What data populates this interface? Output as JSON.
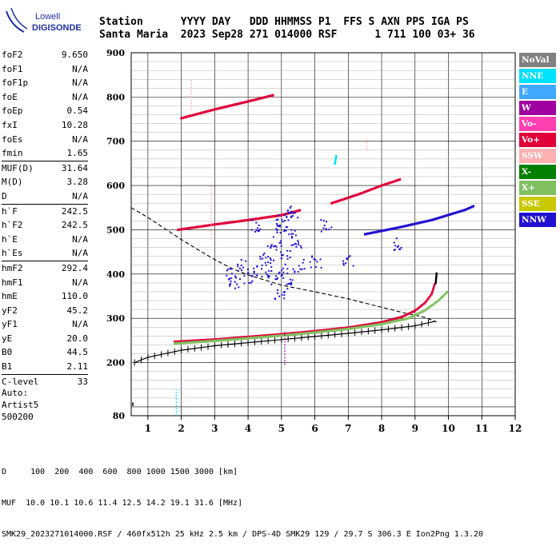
{
  "logo": {
    "line1": "Lowell",
    "line2": "DIGISONDE"
  },
  "header": {
    "line1": "Station      YYYY DAY   DDD HHMMSS P1  FFS S AXN PPS IGA PS",
    "line2": "Santa Maria  2023 Sep28 271 014000 RSF      1 711 100 03+ 36"
  },
  "params": {
    "groups": [
      [
        {
          "label": "foF2",
          "value": "9.650"
        },
        {
          "label": "foF1",
          "value": "N/A"
        },
        {
          "label": "foF1p",
          "value": "N/A"
        },
        {
          "label": "foE",
          "value": "N/A"
        },
        {
          "label": "foEp",
          "value": "0.54"
        },
        {
          "label": "fxI",
          "value": "10.28"
        },
        {
          "label": "foEs",
          "value": "N/A"
        },
        {
          "label": "fmin",
          "value": "1.65"
        }
      ],
      [
        {
          "label": "MUF(D)",
          "value": "31.64"
        },
        {
          "label": "M(D)",
          "value": "3.28"
        },
        {
          "label": "D",
          "value": "N/A"
        }
      ],
      [
        {
          "label": "h`F",
          "value": "242.5"
        },
        {
          "label": "h`F2",
          "value": "242.5"
        },
        {
          "label": "h`E",
          "value": "N/A"
        },
        {
          "label": "h`Es",
          "value": "N/A"
        }
      ],
      [
        {
          "label": "hmF2",
          "value": "292.4"
        },
        {
          "label": "hmF1",
          "value": "N/A"
        },
        {
          "label": "hmE",
          "value": "110.0"
        },
        {
          "label": "yF2",
          "value": "45.2"
        },
        {
          "label": "yF1",
          "value": "N/A"
        },
        {
          "label": "yE",
          "value": "20.0"
        },
        {
          "label": "B0",
          "value": "44.5"
        },
        {
          "label": "B1",
          "value": "2.11"
        }
      ],
      [
        {
          "label": "C-level",
          "value": "33"
        }
      ]
    ]
  },
  "auto": {
    "line1": "Auto:",
    "line2": "Artist5",
    "line3": "500200"
  },
  "legend": [
    {
      "label": "NoVal",
      "color": "#808080"
    },
    {
      "label": "NNE",
      "color": "#00e0ff"
    },
    {
      "label": "E",
      "color": "#40a8ff"
    },
    {
      "label": "W",
      "color": "#a000a0"
    },
    {
      "label": "Vo-",
      "color": "#ff40b0"
    },
    {
      "label": "Vo+",
      "color": "#e0003a"
    },
    {
      "label": "SSW",
      "color": "#ffb0b0"
    },
    {
      "label": "X-",
      "color": "#008000"
    },
    {
      "label": "X+",
      "color": "#80c060"
    },
    {
      "label": "SSE",
      "color": "#c8c800"
    },
    {
      "label": "NNW",
      "color": "#2010d0"
    }
  ],
  "footer": {
    "line1": "D     100  200  400  600  800 1000 1500 3000 [km]",
    "line2": "MUF  10.0 10.1 10.6 11.4 12.5 14.2 19.1 31.6 [MHz]",
    "line3": "SMK29_2023271014000.RSF / 460fx512h 25 kHz 2.5 km / DPS-4D SMK29 129 / 29.7 S 306.3 E Ion2Png 1.3.20"
  },
  "chart_data": {
    "type": "scatter",
    "x_range": [
      0.5,
      12
    ],
    "y_range": [
      80,
      900
    ],
    "x_ticks": [
      1,
      2,
      3,
      4,
      5,
      6,
      7,
      8,
      9,
      10,
      11,
      12
    ],
    "y_ticks": [
      200,
      300,
      400,
      500,
      600,
      700,
      800,
      900
    ],
    "y_extra_tick": 80,
    "grid": true,
    "legend_position": "right",
    "series": [
      {
        "color": "#e0003a",
        "mode": "trace",
        "points": [
          [
            1.8,
            247
          ],
          [
            3,
            252
          ],
          [
            4,
            258
          ],
          [
            5,
            264
          ],
          [
            6,
            271
          ],
          [
            7,
            279
          ],
          [
            8,
            291
          ],
          [
            8.6,
            303
          ],
          [
            9,
            317
          ],
          [
            9.3,
            335
          ],
          [
            9.5,
            355
          ],
          [
            9.6,
            380
          ]
        ]
      },
      {
        "color": "#80c060",
        "mode": "trace",
        "points": [
          [
            1.8,
            243
          ],
          [
            3,
            249
          ],
          [
            4,
            255
          ],
          [
            5,
            261
          ],
          [
            6,
            268
          ],
          [
            7,
            276
          ],
          [
            8,
            287
          ],
          [
            8.8,
            300
          ],
          [
            9.3,
            318
          ],
          [
            9.7,
            340
          ],
          [
            10,
            362
          ]
        ]
      },
      {
        "color": "#000000",
        "mode": "trace",
        "points": [
          [
            9.62,
            380
          ],
          [
            9.65,
            405
          ]
        ]
      },
      {
        "color": "#e0003a",
        "mode": "trace",
        "points": [
          [
            1.9,
            500
          ],
          [
            3,
            512
          ],
          [
            4,
            522
          ],
          [
            5,
            533
          ],
          [
            5.6,
            545
          ]
        ]
      },
      {
        "color": "#e0003a",
        "mode": "trace",
        "points": [
          [
            2,
            752
          ],
          [
            3,
            772
          ],
          [
            4,
            790
          ],
          [
            4.8,
            805
          ]
        ]
      },
      {
        "color": "#e0003a",
        "mode": "trace",
        "points": [
          [
            6.5,
            560
          ],
          [
            7.3,
            580
          ],
          [
            8,
            600
          ],
          [
            8.6,
            615
          ]
        ]
      },
      {
        "color": "#2010d0",
        "mode": "trace",
        "points": [
          [
            7.5,
            490
          ],
          [
            8.5,
            505
          ],
          [
            9.5,
            522
          ],
          [
            10.5,
            545
          ],
          [
            10.8,
            555
          ]
        ]
      },
      {
        "color": "#2010d0",
        "mode": "scatter",
        "points": [
          [
            4,
            395
          ],
          [
            4.3,
            410
          ],
          [
            4.6,
            420
          ],
          [
            4.8,
            470
          ],
          [
            4.9,
            500
          ],
          [
            5,
            520
          ],
          [
            5.1,
            450
          ],
          [
            5.2,
            380
          ],
          [
            5.3,
            530
          ],
          [
            4.5,
            450
          ],
          [
            3.8,
            420
          ],
          [
            3.6,
            380
          ],
          [
            5.4,
            470
          ],
          [
            5.5,
            420
          ],
          [
            6,
            430
          ],
          [
            4.7,
            390
          ],
          [
            5.05,
            410
          ],
          [
            5.25,
            490
          ],
          [
            4.95,
            360
          ],
          [
            5.15,
            540
          ],
          [
            3.5,
            400
          ],
          [
            4.2,
            510
          ],
          [
            6.3,
            510
          ],
          [
            7,
            430
          ],
          [
            8.5,
            470
          ]
        ]
      },
      {
        "color": "#00e0ff",
        "mode": "trace",
        "points": [
          [
            6.6,
            650
          ],
          [
            6.65,
            670
          ]
        ]
      }
    ],
    "profile": {
      "true_height": [
        [
          0.6,
          200
        ],
        [
          1,
          212
        ],
        [
          2,
          228
        ],
        [
          3,
          238
        ],
        [
          4,
          245
        ],
        [
          5,
          252
        ],
        [
          6,
          259
        ],
        [
          7,
          266
        ],
        [
          8,
          274
        ],
        [
          9,
          283
        ],
        [
          9.4,
          290
        ],
        [
          9.6,
          293
        ]
      ],
      "dashed": [
        [
          0.5,
          550
        ],
        [
          1,
          528
        ],
        [
          1.5,
          503
        ],
        [
          2,
          478
        ],
        [
          2.5,
          455
        ],
        [
          3,
          433
        ],
        [
          3.5,
          413
        ],
        [
          4,
          398
        ],
        [
          5,
          375
        ],
        [
          6,
          360
        ],
        [
          7,
          344
        ],
        [
          8,
          325
        ],
        [
          8.7,
          312
        ],
        [
          9.3,
          302
        ],
        [
          9.65,
          292
        ]
      ]
    },
    "spikes": [
      {
        "x": 1.85,
        "y": [
          80,
          140
        ],
        "color": "#00e0ff"
      },
      {
        "x": 5.1,
        "y": [
          195,
          270
        ],
        "color": "#a000a0"
      },
      {
        "x": 2.3,
        "y": [
          770,
          840
        ],
        "color": "#ffb0b0"
      },
      {
        "x": 2.9,
        "y": [
          480,
          600
        ],
        "color": "#ffb0b0"
      },
      {
        "x": 7.55,
        "y": [
          680,
          710
        ],
        "color": "#ffb0b0"
      }
    ]
  }
}
